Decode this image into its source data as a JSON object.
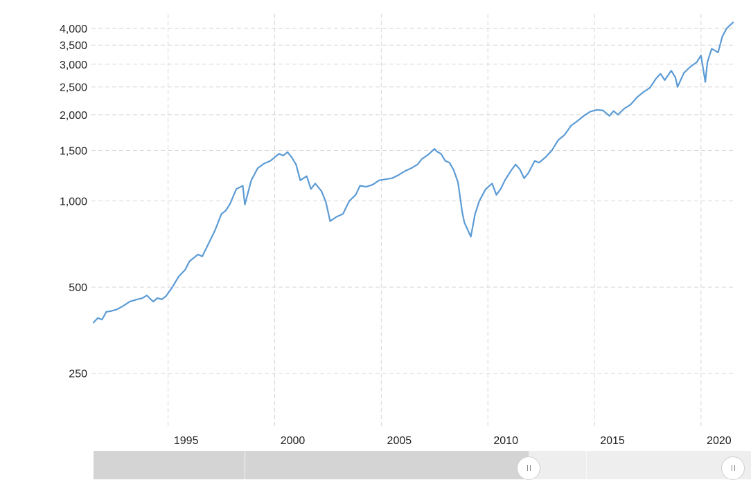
{
  "chart_data": {
    "type": "line",
    "title": "",
    "xlabel": "",
    "ylabel": "",
    "y_scale": "log",
    "ylim": [
      160,
      4500
    ],
    "xlim": [
      1991.5,
      2021.5
    ],
    "grid": true,
    "y_ticks": [
      250,
      500,
      1000,
      1500,
      2000,
      2500,
      3000,
      3500,
      4000
    ],
    "y_tick_labels": [
      "250",
      "500",
      "1,000",
      "1,500",
      "2,000",
      "2,500",
      "3,000",
      "3,500",
      "4,000"
    ],
    "x_ticks": [
      1995,
      2000,
      2005,
      2010,
      2015,
      2020
    ],
    "x_tick_labels": [
      "1995",
      "2000",
      "2005",
      "2010",
      "2015",
      "2020"
    ],
    "series": [
      {
        "color": "#5b9bd5",
        "x": [
          1991.5,
          1991.7,
          1991.9,
          1992.1,
          1992.3,
          1992.6,
          1992.9,
          1993.2,
          1993.5,
          1993.8,
          1994.0,
          1994.3,
          1994.5,
          1994.7,
          1994.9,
          1995.2,
          1995.5,
          1995.8,
          1996.0,
          1996.4,
          1996.6,
          1996.9,
          1997.2,
          1997.5,
          1997.7,
          1997.9,
          1998.2,
          1998.5,
          1998.6,
          1998.9,
          1999.2,
          1999.5,
          1999.8,
          2000.0,
          2000.2,
          2000.4,
          2000.6,
          2000.8,
          2001.0,
          2001.2,
          2001.5,
          2001.7,
          2001.9,
          2002.2,
          2002.4,
          2002.6,
          2002.9,
          2003.2,
          2003.5,
          2003.8,
          2004.0,
          2004.3,
          2004.6,
          2004.9,
          2005.2,
          2005.5,
          2005.8,
          2006.1,
          2006.4,
          2006.7,
          2006.9,
          2007.2,
          2007.5,
          2007.6,
          2007.8,
          2008.0,
          2008.2,
          2008.4,
          2008.6,
          2008.8,
          2008.9,
          2009.2,
          2009.4,
          2009.6,
          2009.9,
          2010.2,
          2010.4,
          2010.6,
          2010.8,
          2011.1,
          2011.3,
          2011.5,
          2011.7,
          2011.9,
          2012.2,
          2012.4,
          2012.7,
          2013.0,
          2013.3,
          2013.6,
          2013.9,
          2014.2,
          2014.5,
          2014.8,
          2015.1,
          2015.4,
          2015.7,
          2015.9,
          2016.1,
          2016.4,
          2016.7,
          2017.0,
          2017.3,
          2017.6,
          2017.9,
          2018.1,
          2018.3,
          2018.6,
          2018.8,
          2018.9,
          2019.2,
          2019.5,
          2019.8,
          2020.0,
          2020.1,
          2020.2,
          2020.3,
          2020.5,
          2020.8,
          2021.0,
          2021.2,
          2021.5
        ],
        "values": [
          376,
          390,
          385,
          410,
          412,
          418,
          430,
          445,
          452,
          458,
          468,
          445,
          458,
          453,
          465,
          500,
          545,
          575,
          615,
          650,
          640,
          710,
          790,
          900,
          925,
          975,
          1100,
          1130,
          970,
          1180,
          1300,
          1350,
          1380,
          1420,
          1460,
          1440,
          1480,
          1420,
          1340,
          1180,
          1220,
          1100,
          1150,
          1080,
          990,
          850,
          880,
          900,
          1000,
          1050,
          1130,
          1120,
          1140,
          1180,
          1190,
          1200,
          1230,
          1270,
          1300,
          1340,
          1400,
          1450,
          1520,
          1490,
          1460,
          1380,
          1360,
          1280,
          1160,
          910,
          840,
          750,
          900,
          1000,
          1100,
          1150,
          1050,
          1100,
          1180,
          1280,
          1340,
          1290,
          1200,
          1250,
          1380,
          1360,
          1420,
          1500,
          1630,
          1700,
          1830,
          1900,
          1980,
          2050,
          2080,
          2070,
          1980,
          2060,
          2000,
          2100,
          2170,
          2300,
          2400,
          2480,
          2680,
          2780,
          2640,
          2850,
          2700,
          2500,
          2800,
          2940,
          3050,
          3220,
          2900,
          2600,
          3050,
          3400,
          3300,
          3750,
          4000,
          4200
        ]
      }
    ]
  }
}
